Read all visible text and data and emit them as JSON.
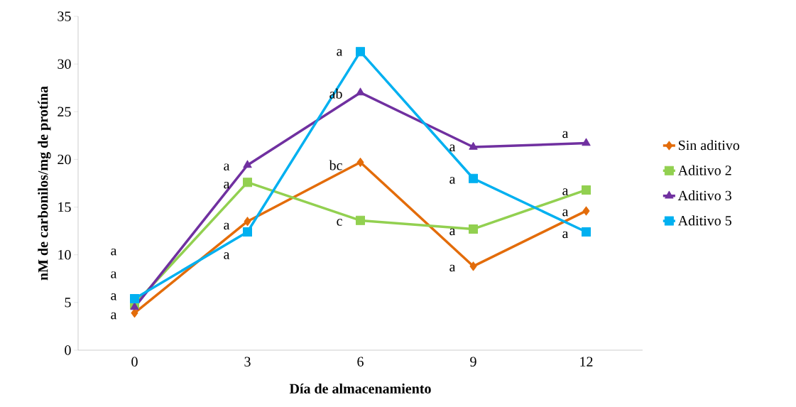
{
  "chart_data": {
    "type": "line",
    "xlabel": "Día de almacenamiento",
    "ylabel": "nM de carbonilos/mg de protína",
    "categories": [
      "0",
      "3",
      "6",
      "9",
      "12"
    ],
    "ylim": [
      0,
      35
    ],
    "yticks": [
      0,
      5,
      10,
      15,
      20,
      25,
      30,
      35
    ],
    "grid": false,
    "legend": "right",
    "series": [
      {
        "name": "Sin aditivo",
        "color": "#e36c0a",
        "marker": "diamond",
        "values": [
          3.9,
          13.5,
          19.7,
          8.8,
          14.6
        ]
      },
      {
        "name": "Aditivo 2",
        "color": "#92d050",
        "marker": "square",
        "values": [
          4.8,
          17.6,
          13.6,
          12.7,
          16.8
        ]
      },
      {
        "name": "Aditivo 3",
        "color": "#7030a0",
        "marker": "triangle",
        "values": [
          4.5,
          19.4,
          27.0,
          21.3,
          21.7
        ]
      },
      {
        "name": "Aditivo 5",
        "color": "#00b0f0",
        "marker": "square",
        "values": [
          5.4,
          12.4,
          31.3,
          18.0,
          12.4
        ]
      }
    ],
    "annotations": [
      "a",
      "a",
      {
        "text": "a",
        "x": "0",
        "y": 5.6
      },
      {
        "text": "a",
        "x": "0",
        "y": 3.6
      },
      {
        "text": "a",
        "x": "3",
        "y": 19.2
      },
      {
        "text": "a",
        "x": "3",
        "y": 17.3
      },
      {
        "text": "a",
        "x": "3",
        "y": 13.0
      },
      "a",
      {
        "text": "a",
        "x": "6",
        "y": 31.2
      },
      {
        "text": "ab",
        "x": "6",
        "y": 26.9
      },
      {
        "text": "bc",
        "x": "6",
        "y": 19.4
      },
      {
        "text": "c",
        "x": "6",
        "y": 13.4
      },
      {
        "text": "a",
        "x": "9",
        "y": 21.2
      },
      {
        "text": "a",
        "x": "9",
        "y": 17.8
      },
      {
        "text": "a",
        "x": "9",
        "y": 12.4
      },
      {
        "text": "a",
        "x": "9",
        "y": 8.6
      },
      "a",
      {
        "text": "a",
        "x": "12",
        "y": 16.6
      },
      {
        "text": "a",
        "x": "12",
        "y": 14.4
      },
      {
        "text": "a",
        "x": "12",
        "y": 12.1
      }
    ]
  }
}
